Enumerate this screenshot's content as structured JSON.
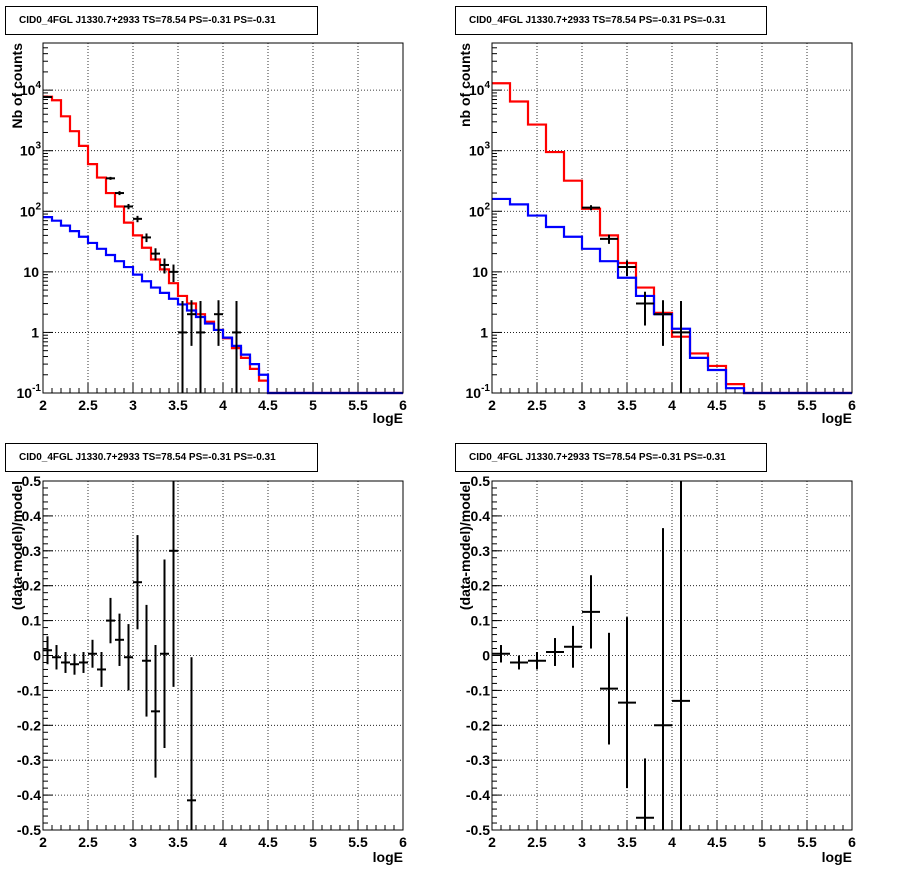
{
  "chart_data": [
    {
      "type": "line",
      "title": "CID0_4FGL J1330.7+2933 TS=78.54 PS=-0.31 PS=-0.31",
      "xlabel": "logE",
      "ylabel": "Nb of counts",
      "xlim": [
        2,
        6
      ],
      "ylim": [
        0.1,
        60000
      ],
      "yscale": "log",
      "grid": true,
      "x_ticks": [
        "2",
        "2.5",
        "3",
        "3.5",
        "4",
        "4.5",
        "5",
        "5.5",
        "6"
      ],
      "y_ticks": [
        {
          "value": 0.1,
          "base": "10",
          "exp": "-1"
        },
        {
          "value": 1,
          "base": "1",
          "exp": ""
        },
        {
          "value": 10,
          "base": "10",
          "exp": ""
        },
        {
          "value": 100,
          "base": "10",
          "exp": "2"
        },
        {
          "value": 1000,
          "base": "10",
          "exp": "3"
        },
        {
          "value": 10000,
          "base": "10",
          "exp": "4"
        }
      ],
      "bin_edges": [
        2.0,
        2.1,
        2.2,
        2.3,
        2.4,
        2.5,
        2.6,
        2.7,
        2.8,
        2.9,
        3.0,
        3.1,
        3.2,
        3.3,
        3.4,
        3.5,
        3.6,
        3.7,
        3.8,
        3.9,
        4.0,
        4.1,
        4.2,
        4.3,
        4.4,
        4.5,
        4.6,
        4.7,
        4.8,
        4.9,
        5.0,
        5.1,
        5.2,
        5.3,
        5.4,
        5.5,
        5.6,
        5.7,
        5.8,
        5.9,
        6.0
      ],
      "series": [
        {
          "color": "#ff0000",
          "values": [
            7800,
            6800,
            3700,
            2100,
            1200,
            600,
            360,
            200,
            120,
            65,
            40,
            25,
            16,
            11,
            6.5,
            4,
            3,
            2,
            1.5,
            1.1,
            0.8,
            0.55,
            0.38,
            0.25,
            0.16,
            0.1,
            0.1,
            0.1,
            0.1,
            0.1,
            0.1,
            0.1,
            0.1,
            0.1,
            0.1,
            0.1,
            0.1,
            0.1,
            0.1,
            0.1
          ]
        },
        {
          "color": "#0000ff",
          "values": [
            80,
            70,
            58,
            47,
            38,
            30,
            24,
            19,
            15,
            12,
            9,
            7,
            5.5,
            4.5,
            3.6,
            2.9,
            2.3,
            1.8,
            1.4,
            1.1,
            0.82,
            0.6,
            0.43,
            0.3,
            0.2,
            0.1,
            0.1,
            0.1,
            0.1,
            0.1,
            0.1,
            0.1,
            0.1,
            0.1,
            0.1,
            0.1,
            0.1,
            0.1,
            0.1,
            0.1
          ]
        }
      ],
      "points": [
        {
          "x": 2.05,
          "y": 7700
        },
        {
          "x": 2.75,
          "y": 350,
          "err": 20
        },
        {
          "x": 2.85,
          "y": 200,
          "err": 15
        },
        {
          "x": 2.95,
          "y": 120,
          "err": 12
        },
        {
          "x": 3.05,
          "y": 75,
          "err": 9
        },
        {
          "x": 3.15,
          "y": 37,
          "err": 6
        },
        {
          "x": 3.25,
          "y": 20,
          "err": 4.5
        },
        {
          "x": 3.35,
          "y": 13,
          "err": 3.6
        },
        {
          "x": 3.45,
          "y": 10,
          "err": 3.2
        },
        {
          "x": 3.55,
          "y": 1,
          "err": 2.3
        },
        {
          "x": 3.65,
          "y": 2,
          "err": 1.4
        },
        {
          "x": 3.75,
          "y": 1,
          "err": 2.3
        },
        {
          "x": 3.95,
          "y": 2,
          "err": 1.4
        },
        {
          "x": 4.15,
          "y": 1,
          "err": 2.3
        }
      ]
    },
    {
      "type": "line",
      "title": "CID0_4FGL J1330.7+2933 TS=78.54 PS=-0.31 PS=-0.31",
      "xlabel": "logE",
      "ylabel": "nb of counts",
      "xlim": [
        2,
        6
      ],
      "ylim": [
        0.1,
        60000
      ],
      "yscale": "log",
      "grid": true,
      "x_ticks": [
        "2",
        "2.5",
        "3",
        "3.5",
        "4",
        "4.5",
        "5",
        "5.5",
        "6"
      ],
      "y_ticks": [
        {
          "value": 0.1,
          "base": "10",
          "exp": "-1"
        },
        {
          "value": 1,
          "base": "1",
          "exp": ""
        },
        {
          "value": 10,
          "base": "10",
          "exp": ""
        },
        {
          "value": 100,
          "base": "10",
          "exp": "2"
        },
        {
          "value": 1000,
          "base": "10",
          "exp": "3"
        },
        {
          "value": 10000,
          "base": "10",
          "exp": "4"
        }
      ],
      "bin_edges": [
        2.0,
        2.2,
        2.4,
        2.6,
        2.8,
        3.0,
        3.2,
        3.4,
        3.6,
        3.8,
        4.0,
        4.2,
        4.4,
        4.6,
        4.8,
        5.0,
        5.2,
        5.4,
        5.6,
        5.8,
        6.0
      ],
      "series": [
        {
          "color": "#ff0000",
          "values": [
            13000,
            6500,
            2700,
            950,
            320,
            110,
            40,
            14,
            5.5,
            2.1,
            0.85,
            0.45,
            0.28,
            0.14,
            0.1,
            0.1,
            0.1,
            0.1,
            0.1,
            0.1
          ]
        },
        {
          "color": "#0000ff",
          "values": [
            160,
            130,
            85,
            55,
            38,
            24,
            15,
            8,
            4,
            2,
            1.15,
            0.38,
            0.24,
            0.12,
            0.1,
            0.1,
            0.1,
            0.1,
            0.1,
            0.1
          ]
        }
      ],
      "points": [
        {
          "x": 3.1,
          "y": 115,
          "err": 11
        },
        {
          "x": 3.3,
          "y": 35,
          "err": 6
        },
        {
          "x": 3.5,
          "y": 12,
          "err": 3.5
        },
        {
          "x": 3.7,
          "y": 3,
          "err": 1.7
        },
        {
          "x": 3.9,
          "y": 2,
          "err": 1.4
        },
        {
          "x": 4.1,
          "y": 1,
          "err": 2.3
        }
      ]
    },
    {
      "type": "scatter",
      "title": "CID0_4FGL J1330.7+2933 TS=78.54 PS=-0.31 PS=-0.31",
      "xlabel": "logE",
      "ylabel": "(data-model)/model",
      "xlim": [
        2,
        6
      ],
      "ylim": [
        -0.5,
        0.5
      ],
      "grid": true,
      "x_ticks": [
        "2",
        "2.5",
        "3",
        "3.5",
        "4",
        "4.5",
        "5",
        "5.5",
        "6"
      ],
      "y_ticks": [
        "-0.5",
        "-0.4",
        "-0.3",
        "-0.2",
        "-0.1",
        "0",
        "0.1",
        "0.2",
        "0.3",
        "0.4",
        "0.5"
      ],
      "half_width": 0.05,
      "points": [
        {
          "x": 2.05,
          "y": 0.015,
          "err": 0.04
        },
        {
          "x": 2.15,
          "y": -0.005,
          "err": 0.035
        },
        {
          "x": 2.25,
          "y": -0.02,
          "err": 0.03
        },
        {
          "x": 2.35,
          "y": -0.025,
          "err": 0.03
        },
        {
          "x": 2.45,
          "y": -0.02,
          "err": 0.03
        },
        {
          "x": 2.55,
          "y": 0.005,
          "err": 0.04
        },
        {
          "x": 2.65,
          "y": -0.04,
          "err": 0.05
        },
        {
          "x": 2.75,
          "y": 0.1,
          "err": 0.065
        },
        {
          "x": 2.85,
          "y": 0.045,
          "err": 0.075
        },
        {
          "x": 2.95,
          "y": -0.005,
          "err": 0.095
        },
        {
          "x": 3.05,
          "y": 0.21,
          "err": 0.135
        },
        {
          "x": 3.15,
          "y": -0.015,
          "err": 0.16
        },
        {
          "x": 3.25,
          "y": -0.16,
          "err": 0.19
        },
        {
          "x": 3.35,
          "y": 0.005,
          "err": 0.27
        },
        {
          "x": 3.45,
          "y": 0.3,
          "err": 0.39
        },
        {
          "x": 3.65,
          "y": -0.415,
          "err": 0.41
        }
      ]
    },
    {
      "type": "scatter",
      "title": "CID0_4FGL J1330.7+2933 TS=78.54 PS=-0.31 PS=-0.31",
      "xlabel": "logE",
      "ylabel": "(data-model)/model",
      "xlim": [
        2,
        6
      ],
      "ylim": [
        -0.5,
        0.5
      ],
      "grid": true,
      "x_ticks": [
        "2",
        "2.5",
        "3",
        "3.5",
        "4",
        "4.5",
        "5",
        "5.5",
        "6"
      ],
      "y_ticks": [
        "-0.5",
        "-0.4",
        "-0.3",
        "-0.2",
        "-0.1",
        "0",
        "0.1",
        "0.2",
        "0.3",
        "0.4",
        "0.5"
      ],
      "half_width": 0.1,
      "points": [
        {
          "x": 2.1,
          "y": 0.005,
          "err": 0.025
        },
        {
          "x": 2.3,
          "y": -0.02,
          "err": 0.02
        },
        {
          "x": 2.5,
          "y": -0.015,
          "err": 0.025
        },
        {
          "x": 2.7,
          "y": 0.01,
          "err": 0.04
        },
        {
          "x": 2.9,
          "y": 0.025,
          "err": 0.06
        },
        {
          "x": 3.1,
          "y": 0.125,
          "err": 0.105
        },
        {
          "x": 3.3,
          "y": -0.095,
          "err": 0.16
        },
        {
          "x": 3.5,
          "y": -0.135,
          "err": 0.245
        },
        {
          "x": 3.7,
          "y": -0.465,
          "err": 0.17
        },
        {
          "x": 3.9,
          "y": -0.2,
          "err": 0.565
        },
        {
          "x": 4.1,
          "y": -0.13,
          "err": 0.8
        }
      ]
    }
  ]
}
